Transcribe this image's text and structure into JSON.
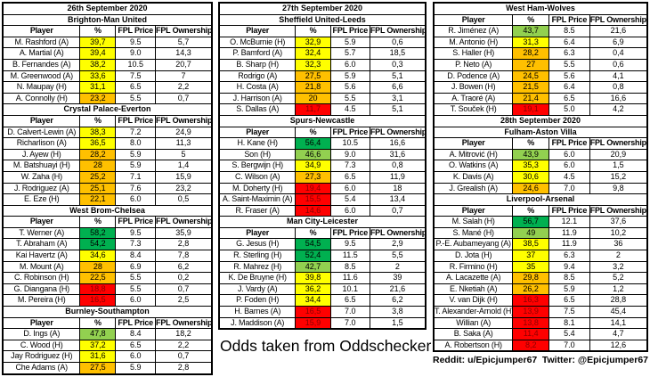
{
  "colors": {
    "green": "#00B050",
    "light_green": "#92D050",
    "yellow": "#FFFF00",
    "orange": "#FFC000",
    "red": "#FF0000"
  },
  "layout": {
    "columns": [
      [
        0,
        1,
        2,
        3
      ],
      [
        4,
        5,
        6
      ],
      [
        7,
        8,
        9
      ]
    ],
    "column_widths_pct": [
      37,
      17,
      19,
      27
    ]
  },
  "notes": {
    "odds": "Odds taken from Oddschecker",
    "reddit": "Reddit: u/Epicjumper67",
    "twitter": "Twitter: @Epicjumper67"
  },
  "chart_data": [
    {
      "type": "table",
      "date": "26th September 2020",
      "title": "Brighton-Man United",
      "columns": [
        "Player",
        "%",
        "FPL Price",
        "FPL Ownership (%)"
      ],
      "rows": [
        {
          "player": "M. Rashford (A)",
          "pct": "39,7",
          "level": "yellow",
          "price": "9.5",
          "own": "5,7"
        },
        {
          "player": "A. Martial (A)",
          "pct": "39,4",
          "level": "yellow",
          "price": "9.0",
          "own": "14,3"
        },
        {
          "player": "B. Fernandes (A)",
          "pct": "38,2",
          "level": "yellow",
          "price": "10.5",
          "own": "20,7"
        },
        {
          "player": "M. Greenwood (A)",
          "pct": "33,6",
          "level": "yellow",
          "price": "7.5",
          "own": "7"
        },
        {
          "player": "N. Maupay (H)",
          "pct": "31,1",
          "level": "yellow",
          "price": "6.5",
          "own": "2,2"
        },
        {
          "player": "A. Connolly (H)",
          "pct": "23,2",
          "level": "orange",
          "price": "5.5",
          "own": "0,7"
        }
      ]
    },
    {
      "type": "table",
      "title": "Crystal Palace-Everton",
      "columns": [
        "Player",
        "%",
        "FPL Price",
        "FPL Ownership (%)"
      ],
      "rows": [
        {
          "player": "D. Calvert-Lewin (A)",
          "pct": "38,3",
          "level": "yellow",
          "price": "7.2",
          "own": "24,9"
        },
        {
          "player": "Richarlison (A)",
          "pct": "36,5",
          "level": "yellow",
          "price": "8.0",
          "own": "11,3"
        },
        {
          "player": "J. Ayew (H)",
          "pct": "28,2",
          "level": "orange",
          "price": "5.9",
          "own": "5"
        },
        {
          "player": "M. Batshuayi (H)",
          "pct": "28",
          "level": "orange",
          "price": "5.9",
          "own": "1,4"
        },
        {
          "player": "W. Zaha (H)",
          "pct": "25,2",
          "level": "orange",
          "price": "7.1",
          "own": "15,9"
        },
        {
          "player": "J. Rodriguez (A)",
          "pct": "25,1",
          "level": "orange",
          "price": "7.6",
          "own": "23,2"
        },
        {
          "player": "E. Eze (H)",
          "pct": "22,1",
          "level": "orange",
          "price": "6.0",
          "own": "0,5"
        }
      ]
    },
    {
      "type": "table",
      "title": "West Brom-Chelsea",
      "columns": [
        "Player",
        "%",
        "FPL Price",
        "FPL Ownership (%)"
      ],
      "rows": [
        {
          "player": "T. Werner (A)",
          "pct": "58,2",
          "level": "green",
          "price": "9.5",
          "own": "35,9"
        },
        {
          "player": "T. Abraham (A)",
          "pct": "54,2",
          "level": "green",
          "price": "7.3",
          "own": "2,8"
        },
        {
          "player": "Kai Havertz (A)",
          "pct": "34,6",
          "level": "yellow",
          "price": "8.4",
          "own": "7,8"
        },
        {
          "player": "M. Mount (A)",
          "pct": "28",
          "level": "orange",
          "price": "6.9",
          "own": "6,2"
        },
        {
          "player": "C. Robinson (H)",
          "pct": "22,5",
          "level": "orange",
          "price": "5.5",
          "own": "0,2"
        },
        {
          "player": "G. Diangana (H)",
          "pct": "18,8",
          "level": "red",
          "price": "5.5",
          "own": "0,7"
        },
        {
          "player": "M. Pereira (H)",
          "pct": "16,5",
          "level": "red",
          "price": "6.0",
          "own": "2,5"
        }
      ]
    },
    {
      "type": "table",
      "title": "Burnley-Southampton",
      "columns": [
        "Player",
        "%",
        "FPL Price",
        "FPL Ownership (%)"
      ],
      "rows": [
        {
          "player": "D. Ings (A)",
          "pct": "47,8",
          "level": "light_green",
          "price": "8.4",
          "own": "18,2"
        },
        {
          "player": "C. Wood (H)",
          "pct": "37,2",
          "level": "yellow",
          "price": "6.5",
          "own": "2,2"
        },
        {
          "player": "Jay Rodriguez (H)",
          "pct": "31,6",
          "level": "yellow",
          "price": "6.0",
          "own": "0,7"
        },
        {
          "player": "Che Adams (A)",
          "pct": "27,5",
          "level": "orange",
          "price": "5.9",
          "own": "2,8"
        }
      ]
    },
    {
      "type": "table",
      "date": "27th September 2020",
      "title": "Sheffield United-Leeds",
      "columns": [
        "Player",
        "%",
        "FPL Price",
        "FPL Ownership (%)"
      ],
      "rows": [
        {
          "player": "O. McBurnie (H)",
          "pct": "32,9",
          "level": "yellow",
          "price": "5.9",
          "own": "0,6"
        },
        {
          "player": "P. Bamford (A)",
          "pct": "32,4",
          "level": "yellow",
          "price": "5.7",
          "own": "18,5"
        },
        {
          "player": "B. Sharp (H)",
          "pct": "32,3",
          "level": "yellow",
          "price": "6.0",
          "own": "0,3"
        },
        {
          "player": "Rodrigo (A)",
          "pct": "27,5",
          "level": "orange",
          "price": "5.9",
          "own": "5,1"
        },
        {
          "player": "H. Costa (A)",
          "pct": "21,8",
          "level": "orange",
          "price": "5.6",
          "own": "6,6"
        },
        {
          "player": "J. Harrison (A)",
          "pct": "20",
          "level": "orange",
          "price": "5.5",
          "own": "3,1"
        },
        {
          "player": "S. Dallas (A)",
          "pct": "11,7",
          "level": "red",
          "price": "4.5",
          "own": "5,1"
        }
      ]
    },
    {
      "type": "table",
      "title": "Spurs-Newcastle",
      "columns": [
        "Player",
        "%",
        "FPL Price",
        "FPL Ownership (%)"
      ],
      "rows": [
        {
          "player": "H. Kane (H)",
          "pct": "56,4",
          "level": "green",
          "price": "10.5",
          "own": "16,6"
        },
        {
          "player": "Son (H)",
          "pct": "46,6",
          "level": "light_green",
          "price": "9.0",
          "own": "31,6"
        },
        {
          "player": "S. Bergwijn (H)",
          "pct": "34,9",
          "level": "yellow",
          "price": "7.3",
          "own": "0,8"
        },
        {
          "player": "C. Wilson (A)",
          "pct": "27,3",
          "level": "orange",
          "price": "6.5",
          "own": "11,9"
        },
        {
          "player": "M. Doherty (H)",
          "pct": "19,4",
          "level": "red",
          "price": "6.0",
          "own": "18"
        },
        {
          "player": "A. Saint-Maximin (A)",
          "pct": "15,5",
          "level": "red",
          "price": "5.4",
          "own": "13,4"
        },
        {
          "player": "R. Fraser (A)",
          "pct": "14,6",
          "level": "red",
          "price": "6.0",
          "own": "0,7"
        }
      ]
    },
    {
      "type": "table",
      "title": "Man City-Leicester",
      "columns": [
        "Player",
        "%",
        "FPL Price",
        "FPL Ownership (%)"
      ],
      "rows": [
        {
          "player": "G. Jesus (H)",
          "pct": "54,5",
          "level": "green",
          "price": "9.5",
          "own": "2,9"
        },
        {
          "player": "R. Sterling (H)",
          "pct": "52,4",
          "level": "green",
          "price": "11.5",
          "own": "5,5"
        },
        {
          "player": "R. Mahrez (H)",
          "pct": "42,7",
          "level": "light_green",
          "price": "8.5",
          "own": "2"
        },
        {
          "player": "K. De Bruyne (H)",
          "pct": "39,8",
          "level": "yellow",
          "price": "11.6",
          "own": "39"
        },
        {
          "player": "J. Vardy (A)",
          "pct": "36,2",
          "level": "yellow",
          "price": "10.1",
          "own": "21,6"
        },
        {
          "player": "P. Foden (H)",
          "pct": "34,4",
          "level": "yellow",
          "price": "6.5",
          "own": "6,2"
        },
        {
          "player": "H. Barnes (A)",
          "pct": "16,5",
          "level": "red",
          "price": "7.0",
          "own": "3,8"
        },
        {
          "player": "J. Maddison (A)",
          "pct": "15,9",
          "level": "red",
          "price": "7.0",
          "own": "1,5"
        }
      ]
    },
    {
      "type": "table",
      "title": "West Ham-Wolves",
      "columns": [
        "Player",
        "%",
        "FPL Price",
        "FPL Ownership (%)"
      ],
      "rows": [
        {
          "player": "R. Jiménez (A)",
          "pct": "43,7",
          "level": "light_green",
          "price": "8.5",
          "own": "21,6"
        },
        {
          "player": "M. Antonio (H)",
          "pct": "31,3",
          "level": "yellow",
          "price": "6.4",
          "own": "6,9"
        },
        {
          "player": "S. Haller (H)",
          "pct": "28,2",
          "level": "orange",
          "price": "6.3",
          "own": "0,4"
        },
        {
          "player": "P. Neto (A)",
          "pct": "27",
          "level": "orange",
          "price": "5.5",
          "own": "0,6"
        },
        {
          "player": "D. Podence (A)",
          "pct": "24,5",
          "level": "orange",
          "price": "5.6",
          "own": "4,1"
        },
        {
          "player": "J. Bowen (H)",
          "pct": "21,5",
          "level": "orange",
          "price": "6.4",
          "own": "0,8"
        },
        {
          "player": "A. Traoré (A)",
          "pct": "21,4",
          "level": "orange",
          "price": "6.5",
          "own": "16,6"
        },
        {
          "player": "T. Souček (H)",
          "pct": "19,1",
          "level": "red",
          "price": "5.0",
          "own": "4,2"
        }
      ]
    },
    {
      "type": "table",
      "date": "28th September 2020",
      "title": "Fulham-Aston Villa",
      "columns": [
        "Player",
        "%",
        "FPL Price",
        "FPL Ownership (%)"
      ],
      "rows": [
        {
          "player": "A. Mitrović (H)",
          "pct": "43,9",
          "level": "light_green",
          "price": "6.0",
          "own": "20,9"
        },
        {
          "player": "O. Watkins (A)",
          "pct": "35,3",
          "level": "yellow",
          "price": "6.0",
          "own": "1,5"
        },
        {
          "player": "K. Davis (A)",
          "pct": "30,6",
          "level": "yellow",
          "price": "4.5",
          "own": "15,2"
        },
        {
          "player": "J. Grealish (A)",
          "pct": "24,6",
          "level": "orange",
          "price": "7.0",
          "own": "9,8"
        }
      ]
    },
    {
      "type": "table",
      "title": "Liverpool-Arsenal",
      "columns": [
        "Player",
        "%",
        "FPL Price",
        "FPL Ownership (%)"
      ],
      "rows": [
        {
          "player": "M. Salah (H)",
          "pct": "56,7",
          "level": "green",
          "price": "12.1",
          "own": "37,6"
        },
        {
          "player": "S. Mané (H)",
          "pct": "49",
          "level": "light_green",
          "price": "11.9",
          "own": "10,2"
        },
        {
          "player": "P.-E. Aubameyang (A)",
          "pct": "38,5",
          "level": "yellow",
          "price": "11.9",
          "own": "36"
        },
        {
          "player": "D. Jota (H)",
          "pct": "37",
          "level": "yellow",
          "price": "6.3",
          "own": "2"
        },
        {
          "player": "R. Firmino (H)",
          "pct": "35",
          "level": "yellow",
          "price": "9.4",
          "own": "3,2"
        },
        {
          "player": "A. Lacazette (A)",
          "pct": "29,8",
          "level": "orange",
          "price": "8.5",
          "own": "5,2"
        },
        {
          "player": "E. Nketiah (A)",
          "pct": "26,2",
          "level": "orange",
          "price": "5.9",
          "own": "1,2"
        },
        {
          "player": "V. van Dijk (H)",
          "pct": "16,3",
          "level": "red",
          "price": "6.5",
          "own": "28,8"
        },
        {
          "player": "T. Alexander-Arnold (H)",
          "pct": "13,9",
          "level": "red",
          "price": "7.5",
          "own": "45,4"
        },
        {
          "player": "Willian (A)",
          "pct": "13,8",
          "level": "red",
          "price": "8.1",
          "own": "14,1"
        },
        {
          "player": "B. Saka (A)",
          "pct": "11,4",
          "level": "red",
          "price": "5.4",
          "own": "4,7"
        },
        {
          "player": "A. Robertson (H)",
          "pct": "8,2",
          "level": "red",
          "price": "7.0",
          "own": "12,6"
        }
      ]
    }
  ]
}
